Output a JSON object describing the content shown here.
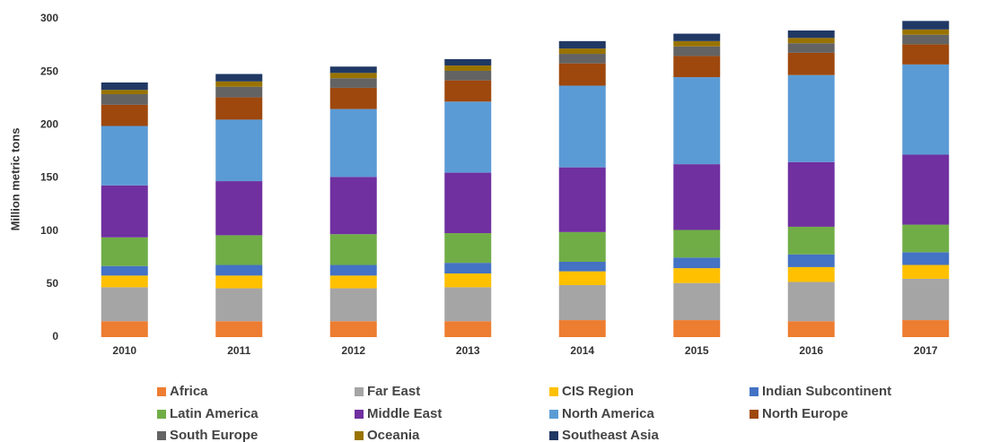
{
  "chart_data": {
    "type": "stacked_bar",
    "y_label": "Million metric tons",
    "categories": [
      "2010",
      "2011",
      "2012",
      "2013",
      "2014",
      "2015",
      "2016",
      "2017"
    ],
    "series": [
      {
        "name": "Africa",
        "color": "#ed7d31",
        "values": [
          15,
          15,
          15,
          15,
          16,
          16,
          15,
          16
        ]
      },
      {
        "name": "Far East",
        "color": "#a5a5a5",
        "values": [
          32,
          31,
          31,
          32,
          33,
          35,
          37,
          39
        ]
      },
      {
        "name": "CIS Region",
        "color": "#ffc000",
        "values": [
          11,
          12,
          12,
          13,
          13,
          14,
          14,
          13
        ]
      },
      {
        "name": "Indian Subcontinent",
        "color": "#4472c4",
        "values": [
          9,
          10,
          10,
          10,
          9,
          10,
          12,
          12
        ]
      },
      {
        "name": "Latin America",
        "color": "#70ad47",
        "values": [
          27,
          28,
          29,
          28,
          28,
          26,
          26,
          26
        ]
      },
      {
        "name": "Middle East",
        "color": "#7030a0",
        "values": [
          49,
          51,
          54,
          57,
          61,
          62,
          61,
          66
        ]
      },
      {
        "name": "North America",
        "color": "#5b9bd5",
        "values": [
          56,
          58,
          64,
          67,
          77,
          82,
          82,
          85
        ]
      },
      {
        "name": "North Europe",
        "color": "#9e480e",
        "values": [
          20,
          21,
          20,
          20,
          21,
          20,
          21,
          19
        ]
      },
      {
        "name": "South Europe",
        "color": "#636363",
        "values": [
          10,
          10,
          9,
          9,
          9,
          9,
          9,
          9
        ]
      },
      {
        "name": "Oceania",
        "color": "#997300",
        "values": [
          4,
          5,
          5,
          5,
          5,
          5,
          5,
          5
        ]
      },
      {
        "name": "Southeast Asia",
        "color": "#203864",
        "values": [
          7,
          7,
          6,
          6,
          7,
          7,
          7,
          8
        ]
      }
    ],
    "ylim": [
      0,
      300
    ],
    "yticks": [
      0,
      50,
      100,
      150,
      200,
      250,
      300
    ],
    "grid": false
  }
}
